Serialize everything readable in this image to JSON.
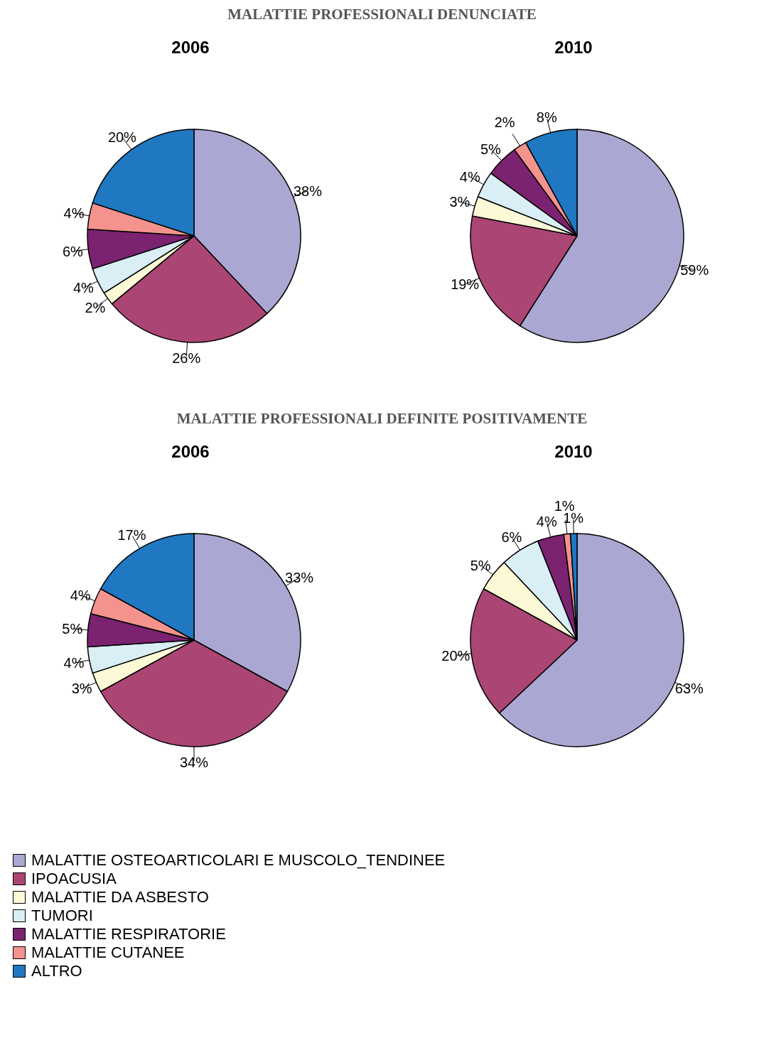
{
  "chart_data": [
    {
      "type": "pie",
      "title": "MALATTIE PROFESSIONALI DENUNCIATE",
      "subtitle": "2006",
      "categories": [
        "MALATTIE OSTEOARTICOLARI E MUSCOLO_TENDINEE",
        "IPOACUSIA",
        "MALATTIE DA ASBESTO",
        "TUMORI",
        "MALATTIE RESPIRATORIE",
        "MALATTIE CUTANEE",
        "ALTRO"
      ],
      "values": [
        38,
        26,
        2,
        4,
        6,
        4,
        20
      ],
      "value_labels": [
        "38%",
        "26%",
        "2%",
        "4%",
        "6%",
        "4%",
        "20%"
      ],
      "colors": [
        "#aaa8d2",
        "#ab4574",
        "#fcfad6",
        "#d9eef5",
        "#7b2271",
        "#f4938e",
        "#1f78c1"
      ],
      "legend": "bottom"
    },
    {
      "type": "pie",
      "subtitle": "2010",
      "categories": [
        null,
        null,
        null,
        null,
        null,
        null,
        null
      ],
      "values": [
        59,
        19,
        3,
        4,
        5,
        2,
        8
      ],
      "value_labels": [
        "59%",
        "19%",
        "3%",
        "4%",
        "5%",
        "2%",
        "8%"
      ],
      "colors": [
        "#aaa8d2",
        "#ab4574",
        "#fcfad6",
        "#d9eef5",
        "#7b2271",
        "#f4938e",
        "#1f78c1"
      ]
    },
    {
      "type": "pie",
      "title": "MALATTIE PROFESSIONALI DEFINITE POSITIVAMENTE",
      "subtitle": "2006",
      "categories": [
        null,
        null,
        null,
        null,
        null,
        null,
        null
      ],
      "values": [
        33,
        34,
        3,
        4,
        5,
        4,
        17
      ],
      "value_labels": [
        "33%",
        "34%",
        "3%",
        "4%",
        "5%",
        "4%",
        "17%"
      ],
      "colors": [
        "#aaa8d2",
        "#ab4574",
        "#fcfad6",
        "#d9eef5",
        "#7b2271",
        "#f4938e",
        "#1f78c1"
      ]
    },
    {
      "type": "pie",
      "subtitle": "2010",
      "categories": [
        null,
        null,
        null,
        null,
        null,
        null,
        null
      ],
      "values": [
        63,
        20,
        5,
        6,
        4,
        1,
        1
      ],
      "value_labels": [
        "63%",
        "20%",
        "5%",
        "6%",
        "4%",
        "1%",
        "1%"
      ],
      "colors": [
        "#aaa8d2",
        "#ab4574",
        "#fcfad6",
        "#d9eef5",
        "#7b2271",
        "#f4938e",
        "#1f78c1"
      ]
    }
  ]
}
